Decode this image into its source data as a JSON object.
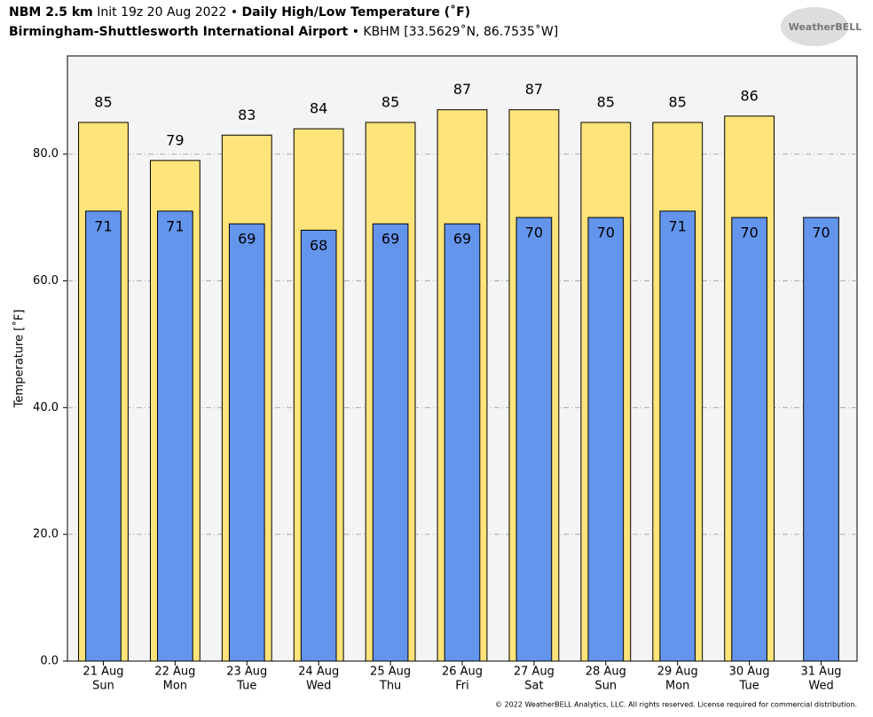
{
  "header": {
    "model": "NBM 2.5 km",
    "init": "Init 19z 20 Aug 2022",
    "separator": "•",
    "product": "Daily High/Low Temperature (˚F)",
    "station": "Birmingham-Shuttlesworth International Airport",
    "location": "• KBHM [33.5629˚N, 86.7535˚W]",
    "logo": "WeatherBELL"
  },
  "footer": "© 2022 WeatherBELL Analytics, LLC. All rights reserved. License required for commercial distribution.",
  "chart_data": {
    "type": "bar",
    "y_label": "Temperature [˚F]",
    "categories": [
      "21 Aug",
      "22 Aug",
      "23 Aug",
      "24 Aug",
      "25 Aug",
      "26 Aug",
      "27 Aug",
      "28 Aug",
      "29 Aug",
      "30 Aug",
      "31 Aug"
    ],
    "weekdays": [
      "Sun",
      "Mon",
      "Tue",
      "Wed",
      "Thu",
      "Fri",
      "Sat",
      "Sun",
      "Mon",
      "Tue",
      "Wed"
    ],
    "series": [
      {
        "color": "#ffe47a",
        "values": [
          85,
          79,
          83,
          84,
          85,
          87,
          87,
          85,
          85,
          86,
          null
        ]
      },
      {
        "color": "#6495ed",
        "values": [
          71,
          71,
          69,
          68,
          69,
          69,
          70,
          70,
          71,
          70,
          70
        ]
      }
    ],
    "ylim": [
      0,
      95.5
    ],
    "yticks": [
      {
        "value": 0,
        "label": "0.0"
      },
      {
        "value": 20,
        "label": "20.0"
      },
      {
        "value": 40,
        "label": "40.0"
      },
      {
        "value": 60,
        "label": "60.0"
      },
      {
        "value": 80,
        "label": "80.0"
      }
    ],
    "grid": true
  }
}
